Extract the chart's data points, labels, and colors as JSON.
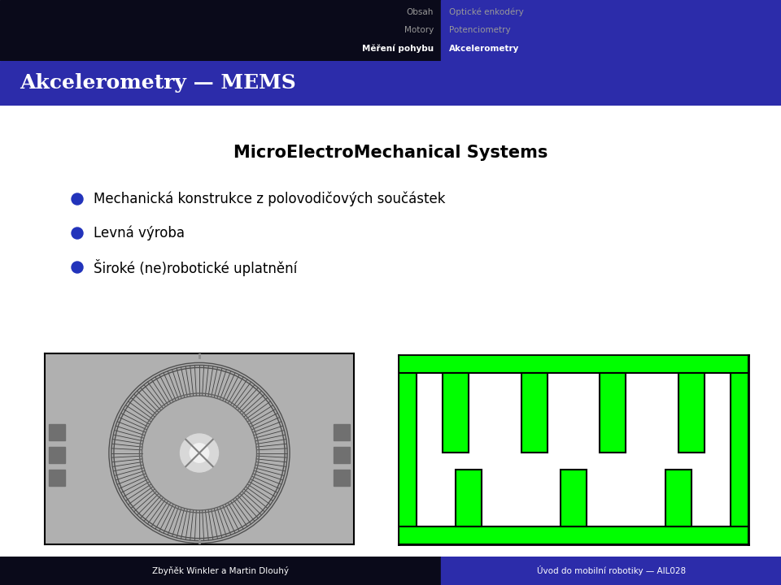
{
  "slide_bg": "#ffffff",
  "header_dark_bg": "#0a0a1a",
  "header_blue_bg": "#2c2caa",
  "title_bar_bg": "#2c2caa",
  "nav_left": [
    "Obsah",
    "Motory",
    "Měření pohybu"
  ],
  "nav_right": [
    "Optické enkodéry",
    "Potenciometry",
    "Akcelerometry"
  ],
  "nav_active": "Akcelerometry",
  "nav_active_left": "Měření pohybu",
  "slide_title": "Akcelerometry — MEMS",
  "main_title": "MicroElectroMechanical Systems",
  "bullets": [
    "Mechanická konstrukce z polovodičových součástek",
    "Levná výroba",
    "Široké (ne)robotické uplatnění"
  ],
  "bullet_color": "#2233bb",
  "footer_dark_bg": "#0a0a1a",
  "footer_blue_bg": "#2c2caa",
  "footer_left": "Zbyňěk Winkler a Martin Dlouhý",
  "footer_right": "Úvod do mobilní robotiky — AIL028",
  "green_color": "#00ff00",
  "outline_color": "#000000",
  "nav_split": 0.565
}
